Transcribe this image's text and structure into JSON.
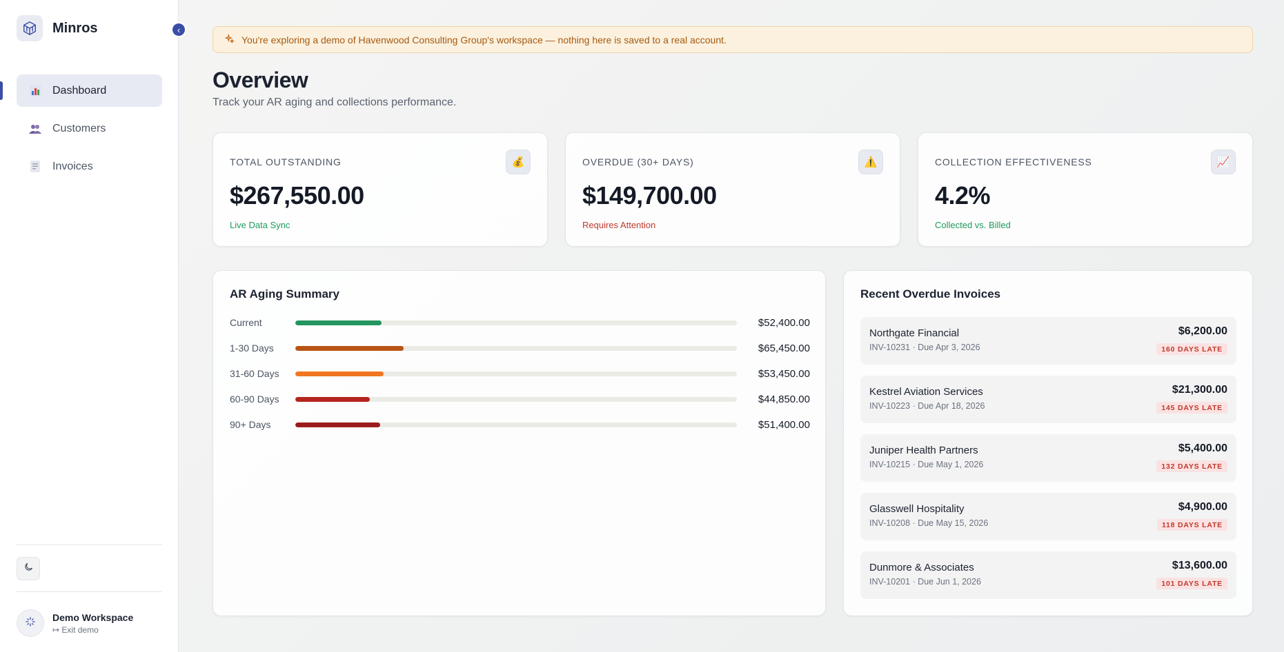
{
  "app": {
    "name": "Minros",
    "logo_icon": "cube-logo-icon"
  },
  "sidebar": {
    "collapse_icon": "chevron-left-icon",
    "items": [
      {
        "label": "Dashboard",
        "icon": "bar-chart-icon",
        "active": true
      },
      {
        "label": "Customers",
        "icon": "users-icon",
        "active": false
      },
      {
        "label": "Invoices",
        "icon": "receipt-icon",
        "active": false
      }
    ],
    "theme_toggle_icon": "moon-icon",
    "workspace": {
      "name": "Demo Workspace",
      "exit_label": "Exit demo",
      "exit_icon": "exit-arrow-icon"
    }
  },
  "banner": {
    "icon": "sparkles-icon",
    "text": "You're exploring a demo of Havenwood Consulting Group's workspace — nothing here is saved to a real account."
  },
  "page": {
    "title": "Overview",
    "subtitle": "Track your AR aging and collections performance."
  },
  "stats": [
    {
      "label": "TOTAL OUTSTANDING",
      "value": "$267,550.00",
      "sub": "Live Data Sync",
      "sub_color": "#1f9a5c",
      "icon": "money-bag-icon",
      "glyph": "💰"
    },
    {
      "label": "OVERDUE (30+ DAYS)",
      "value": "$149,700.00",
      "sub": "Requires Attention",
      "sub_color": "#c0392b",
      "icon": "warning-icon",
      "glyph": "⚠️"
    },
    {
      "label": "COLLECTION EFFECTIVENESS",
      "value": "4.2%",
      "sub": "Collected vs. Billed",
      "sub_color": "#1f9a5c",
      "icon": "trending-up-icon",
      "glyph": "📈"
    }
  ],
  "aging": {
    "title": "AR Aging Summary",
    "rows": [
      {
        "label": "Current",
        "amount": "$52,400.00",
        "fraction": 0.196,
        "color": "#23955e"
      },
      {
        "label": "1-30 Days",
        "amount": "$65,450.00",
        "fraction": 0.245,
        "color": "#b85415"
      },
      {
        "label": "31-60 Days",
        "amount": "$53,450.00",
        "fraction": 0.2,
        "color": "#f27620"
      },
      {
        "label": "60-90 Days",
        "amount": "$44,850.00",
        "fraction": 0.168,
        "color": "#b3261e"
      },
      {
        "label": "90+ Days",
        "amount": "$51,400.00",
        "fraction": 0.192,
        "color": "#9b1c1c"
      }
    ]
  },
  "recent": {
    "title": "Recent Overdue Invoices",
    "items": [
      {
        "customer": "Northgate Financial",
        "meta": "INV-10231 · Due Apr 3, 2026",
        "amount": "$6,200.00",
        "badge": "160 DAYS LATE"
      },
      {
        "customer": "Kestrel Aviation Services",
        "meta": "INV-10223 · Due Apr 18, 2026",
        "amount": "$21,300.00",
        "badge": "145 DAYS LATE"
      },
      {
        "customer": "Juniper Health Partners",
        "meta": "INV-10215 · Due May 1, 2026",
        "amount": "$5,400.00",
        "badge": "132 DAYS LATE"
      },
      {
        "customer": "Glasswell Hospitality",
        "meta": "INV-10208 · Due May 15, 2026",
        "amount": "$4,900.00",
        "badge": "118 DAYS LATE"
      },
      {
        "customer": "Dunmore & Associates",
        "meta": "INV-10201 · Due Jun 1, 2026",
        "amount": "$13,600.00",
        "badge": "101 DAYS LATE"
      }
    ]
  }
}
